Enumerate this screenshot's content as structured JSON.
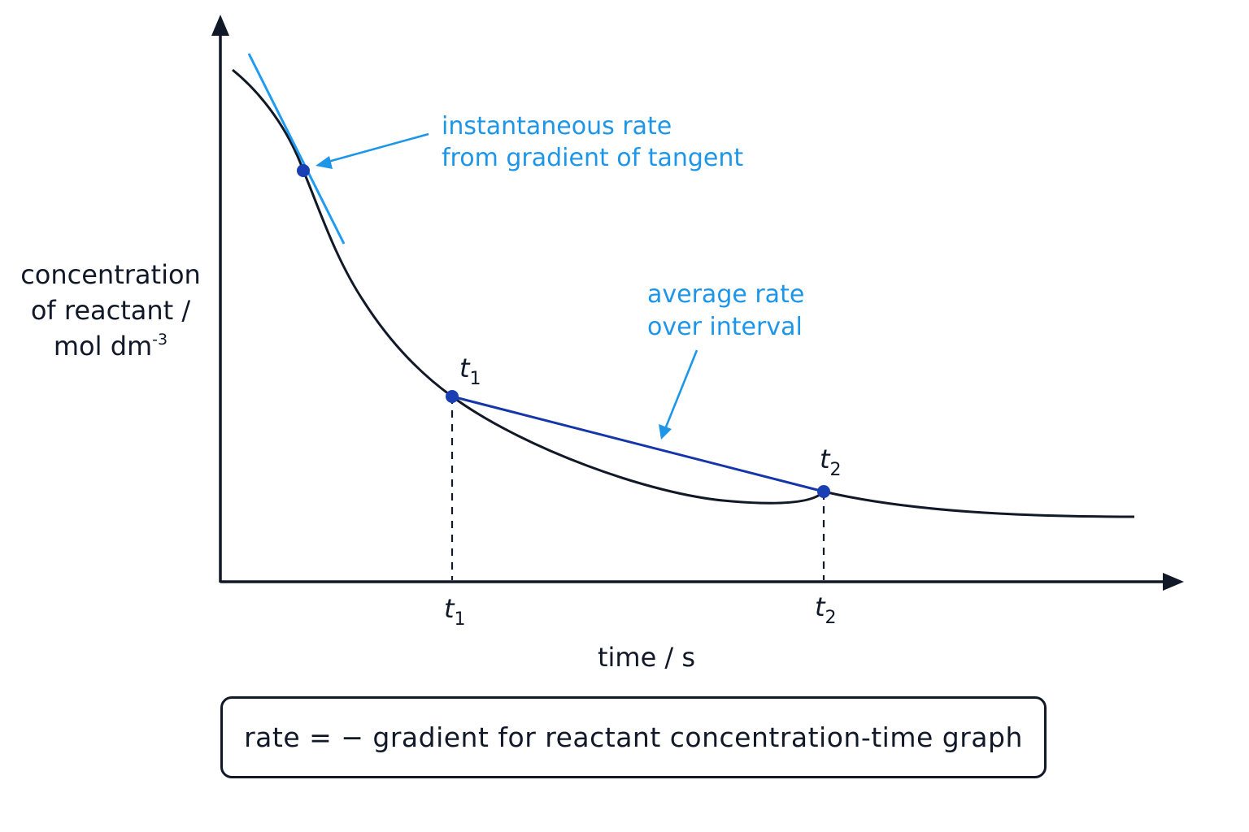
{
  "colors": {
    "axis": "#111827",
    "curve": "#111827",
    "tangent": "#1f9bf0",
    "annotation": "#1e96e8",
    "secant": "#1536a8",
    "point": "#1a3fb5"
  },
  "y_label": {
    "line1": "concentration",
    "line2": "of reactant /",
    "line3": "mol dm",
    "unit_exp": "-3"
  },
  "x_label": "time / s",
  "ticks": {
    "t1": {
      "base": "t",
      "sub": "1"
    },
    "t2": {
      "base": "t",
      "sub": "2"
    }
  },
  "point_labels": {
    "t1": {
      "base": "t",
      "sub": "1"
    },
    "t2": {
      "base": "t",
      "sub": "2"
    }
  },
  "annotations": {
    "tangent": {
      "line1": "instantaneous rate",
      "line2": "from gradient of tangent"
    },
    "secant": {
      "line1": "average rate",
      "line2": "over interval"
    }
  },
  "formula": "rate = − gradient for reactant concentration-time graph"
}
